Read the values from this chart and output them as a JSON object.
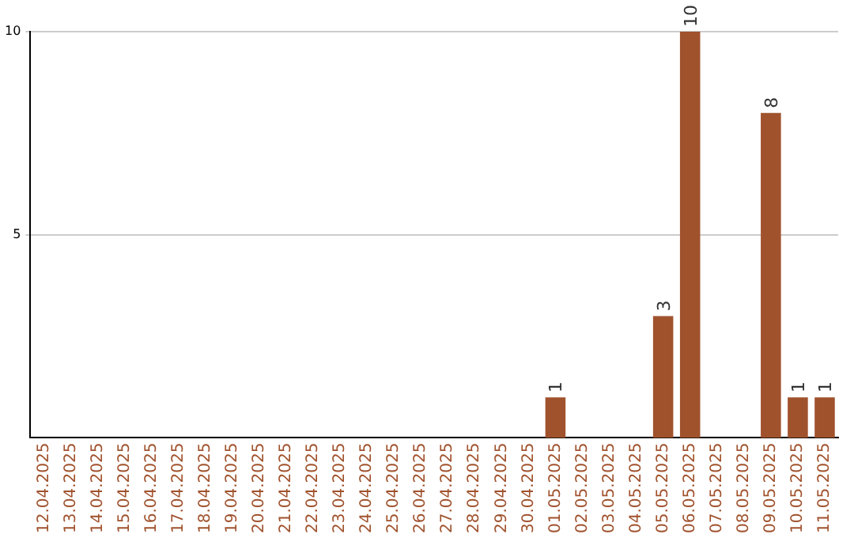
{
  "chart_data": {
    "type": "bar",
    "categories": [
      "12.04.2025",
      "13.04.2025",
      "14.04.2025",
      "15.04.2025",
      "16.04.2025",
      "17.04.2025",
      "18.04.2025",
      "19.04.2025",
      "20.04.2025",
      "21.04.2025",
      "22.04.2025",
      "23.04.2025",
      "24.04.2025",
      "25.04.2025",
      "26.04.2025",
      "27.04.2025",
      "28.04.2025",
      "29.04.2025",
      "30.04.2025",
      "01.05.2025",
      "02.05.2025",
      "03.05.2025",
      "04.05.2025",
      "05.05.2025",
      "06.05.2025",
      "07.05.2025",
      "08.05.2025",
      "09.05.2025",
      "10.05.2025",
      "11.05.2025"
    ],
    "values": [
      0,
      0,
      0,
      0,
      0,
      0,
      0,
      0,
      0,
      0,
      0,
      0,
      0,
      0,
      0,
      0,
      0,
      0,
      0,
      1,
      0,
      0,
      0,
      3,
      10,
      0,
      0,
      8,
      1,
      1
    ],
    "value_labels": [
      null,
      null,
      null,
      null,
      null,
      null,
      null,
      null,
      null,
      null,
      null,
      null,
      null,
      null,
      null,
      null,
      null,
      null,
      null,
      "1",
      null,
      null,
      null,
      "3",
      "10",
      null,
      null,
      "8",
      "1",
      "1"
    ],
    "color": "#a0522d",
    "ylim": [
      0,
      10
    ],
    "yticks": [
      5,
      10
    ],
    "grid": "y",
    "legend": false
  }
}
